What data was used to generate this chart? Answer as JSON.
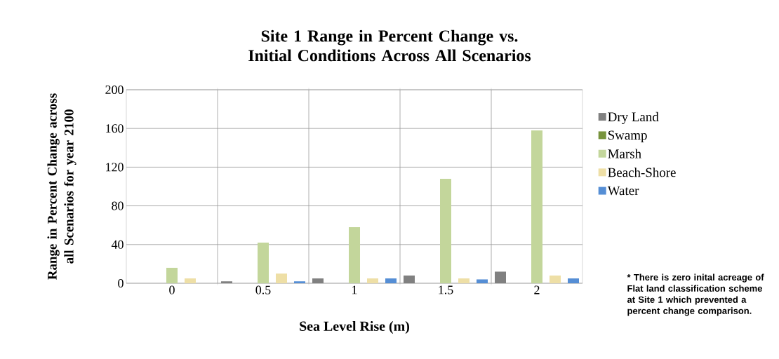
{
  "chart_data": {
    "type": "bar",
    "title": "Site 1 Range in Percent Change vs. Initial Conditions Across All Scenarios",
    "xlabel": "Sea Level Rise (m)",
    "ylabel": "Range in Percent Change across all Scenarios for year 2100",
    "categories": [
      "0",
      "0.5",
      "1",
      "1.5",
      "2"
    ],
    "series": [
      {
        "name": "Dry Land",
        "color": "#808080",
        "values": [
          0,
          2,
          5,
          8,
          12
        ]
      },
      {
        "name": "Swamp",
        "color": "#77933c",
        "values": [
          0,
          0,
          0,
          0,
          0
        ]
      },
      {
        "name": "Marsh",
        "color": "#c3d69b",
        "values": [
          16,
          42,
          58,
          108,
          158
        ]
      },
      {
        "name": "Beach-Shore",
        "color": "#eedfa6",
        "values": [
          5,
          10,
          5,
          5,
          8
        ]
      },
      {
        "name": "Water",
        "color": "#558ed5",
        "values": [
          0,
          2,
          5,
          4,
          5
        ]
      }
    ],
    "ylim": [
      0,
      200
    ],
    "yticks": [
      0,
      40,
      80,
      120,
      160,
      200
    ],
    "grid": true,
    "legend": "right",
    "annotations": [
      "* There is zero inital acreage of Flat land classification scheme at Site 1 which prevented a percent change comparison."
    ]
  }
}
